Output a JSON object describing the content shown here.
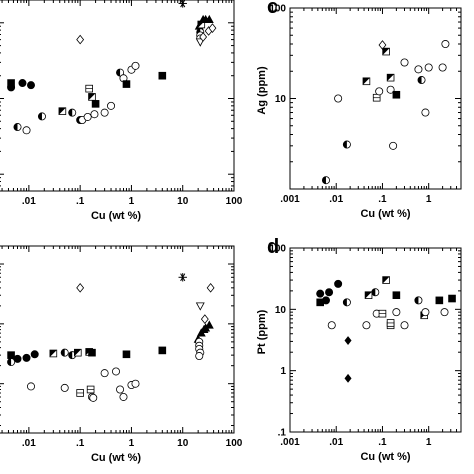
{
  "chart_data": [
    {
      "panel": "a",
      "type": "scatter",
      "letter": "",
      "xlabel": "Cu  (wt %)",
      "ylabel": "",
      "x_scale": "log",
      "y_scale": "log",
      "xlim": [
        0.0025,
        100
      ],
      "ylim": [
        0.6,
        200
      ],
      "x_ticks": [
        {
          "v": 0.01,
          "label": ".01"
        },
        {
          "v": 0.1,
          "label": ".1"
        },
        {
          "v": 1,
          "label": "1"
        },
        {
          "v": 10,
          "label": "10"
        },
        {
          "v": 100,
          "label": "100"
        }
      ],
      "y_ticks": [],
      "points": [
        {
          "x": 0.0045,
          "y": 14,
          "m": "filled-circle"
        },
        {
          "x": 0.0045,
          "y": 16,
          "m": "filled-square"
        },
        {
          "x": 0.0075,
          "y": 16,
          "m": "filled-circle"
        },
        {
          "x": 0.011,
          "y": 15,
          "m": "filled-circle"
        },
        {
          "x": 0.006,
          "y": 4.2,
          "m": "half-circle"
        },
        {
          "x": 0.009,
          "y": 3.8,
          "m": "open-circle"
        },
        {
          "x": 0.018,
          "y": 5.8,
          "m": "half-circle"
        },
        {
          "x": 0.045,
          "y": 6.8,
          "m": "half-square"
        },
        {
          "x": 0.07,
          "y": 6.5,
          "m": "half-circle"
        },
        {
          "x": 0.1,
          "y": 5.2,
          "m": "half-circle"
        },
        {
          "x": 0.11,
          "y": 5.2,
          "m": "open-circle"
        },
        {
          "x": 0.14,
          "y": 5.7,
          "m": "open-circle"
        },
        {
          "x": 0.15,
          "y": 13.5,
          "m": "open-square"
        },
        {
          "x": 0.17,
          "y": 10.5,
          "m": "half-square"
        },
        {
          "x": 0.2,
          "y": 8.5,
          "m": "filled-square"
        },
        {
          "x": 0.19,
          "y": 6.2,
          "m": "open-circle"
        },
        {
          "x": 0.3,
          "y": 6.5,
          "m": "open-circle"
        },
        {
          "x": 0.4,
          "y": 8.0,
          "m": "open-circle"
        },
        {
          "x": 0.6,
          "y": 22,
          "m": "half-circle"
        },
        {
          "x": 0.7,
          "y": 18.5,
          "m": "open-circle"
        },
        {
          "x": 0.8,
          "y": 15.5,
          "m": "filled-square"
        },
        {
          "x": 1.0,
          "y": 24,
          "m": "open-circle"
        },
        {
          "x": 1.2,
          "y": 27,
          "m": "open-circle"
        },
        {
          "x": 0.1,
          "y": 60,
          "m": "open-diamond"
        },
        {
          "x": 4,
          "y": 20,
          "m": "filled-square"
        },
        {
          "x": 10,
          "y": 180,
          "m": "asterisk"
        },
        {
          "x": 21,
          "y": 90,
          "m": "filled-triangle"
        },
        {
          "x": 23,
          "y": 95,
          "m": "half-square"
        },
        {
          "x": 25,
          "y": 110,
          "m": "filled-triangle"
        },
        {
          "x": 28,
          "y": 110,
          "m": "filled-triangle"
        },
        {
          "x": 33,
          "y": 110,
          "m": "filled-triangle"
        },
        {
          "x": 22,
          "y": 75,
          "m": "half-circle"
        },
        {
          "x": 22,
          "y": 68,
          "m": "open-circle"
        },
        {
          "x": 22,
          "y": 62,
          "m": "open-circle"
        },
        {
          "x": 22,
          "y": 56,
          "m": "open-triangle-down"
        },
        {
          "x": 25,
          "y": 65,
          "m": "open-diamond"
        },
        {
          "x": 32,
          "y": 78,
          "m": "open-diamond"
        },
        {
          "x": 38,
          "y": 85,
          "m": "open-diamond"
        }
      ]
    },
    {
      "panel": "c",
      "type": "scatter",
      "letter": "c",
      "xlabel": "Cu  (wt %)",
      "ylabel": "Ag  (ppm)",
      "x_scale": "log",
      "y_scale": "log",
      "xlim": [
        0.001,
        5
      ],
      "ylim": [
        1,
        100
      ],
      "x_ticks": [
        {
          "v": 0.001,
          "label": ".001"
        },
        {
          "v": 0.01,
          "label": ".01"
        },
        {
          "v": 0.1,
          "label": ".1"
        },
        {
          "v": 1,
          "label": "1"
        }
      ],
      "y_ticks": [
        {
          "v": 10,
          "label": "10"
        },
        {
          "v": 100,
          "label": "100"
        }
      ],
      "points": [
        {
          "x": 0.006,
          "y": 1.25,
          "m": "half-circle"
        },
        {
          "x": 0.011,
          "y": 10,
          "m": "open-circle"
        },
        {
          "x": 0.017,
          "y": 3.1,
          "m": "half-circle"
        },
        {
          "x": 0.045,
          "y": 15.5,
          "m": "half-square"
        },
        {
          "x": 0.075,
          "y": 10.2,
          "m": "open-square"
        },
        {
          "x": 0.085,
          "y": 12,
          "m": "open-circle"
        },
        {
          "x": 0.1,
          "y": 39,
          "m": "open-diamond"
        },
        {
          "x": 0.12,
          "y": 33,
          "m": "half-square"
        },
        {
          "x": 0.15,
          "y": 17,
          "m": "half-square"
        },
        {
          "x": 0.15,
          "y": 12.5,
          "m": "open-circle"
        },
        {
          "x": 0.17,
          "y": 3,
          "m": "open-circle"
        },
        {
          "x": 0.2,
          "y": 11,
          "m": "filled-square"
        },
        {
          "x": 0.3,
          "y": 25,
          "m": "open-circle"
        },
        {
          "x": 0.6,
          "y": 21,
          "m": "open-circle"
        },
        {
          "x": 0.7,
          "y": 16,
          "m": "half-circle"
        },
        {
          "x": 0.85,
          "y": 7,
          "m": "open-circle"
        },
        {
          "x": 1.0,
          "y": 22,
          "m": "open-circle"
        },
        {
          "x": 2.0,
          "y": 22,
          "m": "open-circle"
        },
        {
          "x": 2.3,
          "y": 40,
          "m": "open-circle"
        }
      ]
    },
    {
      "panel": "b",
      "type": "scatter",
      "letter": "",
      "xlabel": "Cu  (wt %)",
      "ylabel": "",
      "x_scale": "log",
      "y_scale": "log",
      "xlim": [
        0.0025,
        100
      ],
      "ylim": [
        0.15,
        200
      ],
      "x_ticks": [
        {
          "v": 0.01,
          "label": ".01"
        },
        {
          "v": 0.1,
          "label": ".1"
        },
        {
          "v": 1,
          "label": "1"
        },
        {
          "v": 10,
          "label": "10"
        },
        {
          "v": 100,
          "label": "100"
        }
      ],
      "y_ticks": [],
      "points": [
        {
          "x": 0.0045,
          "y": 2.3,
          "m": "half-circle"
        },
        {
          "x": 0.0045,
          "y": 3.0,
          "m": "filled-square"
        },
        {
          "x": 0.006,
          "y": 2.6,
          "m": "filled-circle"
        },
        {
          "x": 0.009,
          "y": 2.7,
          "m": "filled-circle"
        },
        {
          "x": 0.013,
          "y": 3.1,
          "m": "filled-circle"
        },
        {
          "x": 0.011,
          "y": 0.9,
          "m": "open-circle"
        },
        {
          "x": 0.03,
          "y": 3.2,
          "m": "half-square"
        },
        {
          "x": 0.05,
          "y": 3.3,
          "m": "half-circle"
        },
        {
          "x": 0.07,
          "y": 3.0,
          "m": "half-circle"
        },
        {
          "x": 0.05,
          "y": 0.85,
          "m": "open-circle"
        },
        {
          "x": 0.09,
          "y": 3.3,
          "m": "half-square"
        },
        {
          "x": 0.1,
          "y": 0.7,
          "m": "open-square"
        },
        {
          "x": 0.1,
          "y": 40,
          "m": "open-diamond"
        },
        {
          "x": 0.15,
          "y": 3.4,
          "m": "half-square"
        },
        {
          "x": 0.17,
          "y": 3.3,
          "m": "filled-square"
        },
        {
          "x": 0.16,
          "y": 0.8,
          "m": "open-square"
        },
        {
          "x": 0.17,
          "y": 0.6,
          "m": "open-circle"
        },
        {
          "x": 0.18,
          "y": 0.58,
          "m": "open-circle"
        },
        {
          "x": 0.3,
          "y": 1.5,
          "m": "open-circle"
        },
        {
          "x": 0.5,
          "y": 1.6,
          "m": "open-circle"
        },
        {
          "x": 0.6,
          "y": 0.8,
          "m": "open-circle"
        },
        {
          "x": 0.7,
          "y": 0.6,
          "m": "open-circle"
        },
        {
          "x": 0.8,
          "y": 3.1,
          "m": "filled-square"
        },
        {
          "x": 1.0,
          "y": 0.95,
          "m": "open-circle"
        },
        {
          "x": 1.2,
          "y": 1.0,
          "m": "open-circle"
        },
        {
          "x": 4,
          "y": 3.6,
          "m": "filled-square"
        },
        {
          "x": 10,
          "y": 60,
          "m": "asterisk"
        },
        {
          "x": 22,
          "y": 20,
          "m": "open-triangle-down"
        },
        {
          "x": 20,
          "y": 5.5,
          "m": "filled-triangle"
        },
        {
          "x": 23,
          "y": 7,
          "m": "filled-triangle"
        },
        {
          "x": 26,
          "y": 8,
          "m": "filled-triangle"
        },
        {
          "x": 28,
          "y": 8.5,
          "m": "filled-triangle"
        },
        {
          "x": 33,
          "y": 9.5,
          "m": "filled-triangle"
        },
        {
          "x": 21,
          "y": 5,
          "m": "open-circle"
        },
        {
          "x": 21,
          "y": 4.3,
          "m": "open-circle"
        },
        {
          "x": 21,
          "y": 3.8,
          "m": "open-circle"
        },
        {
          "x": 22,
          "y": 3.3,
          "m": "open-circle"
        },
        {
          "x": 21,
          "y": 2.9,
          "m": "open-circle"
        },
        {
          "x": 27,
          "y": 12,
          "m": "open-diamond"
        },
        {
          "x": 35,
          "y": 40,
          "m": "open-diamond"
        }
      ]
    },
    {
      "panel": "d",
      "type": "scatter",
      "letter": "d",
      "xlabel": "Cu (wt %)",
      "ylabel": "Pt  (ppm)",
      "x_scale": "log",
      "y_scale": "log",
      "xlim": [
        0.001,
        5
      ],
      "ylim": [
        0.1,
        100
      ],
      "x_ticks": [
        {
          "v": 0.001,
          "label": ".001"
        },
        {
          "v": 0.01,
          "label": ".01"
        },
        {
          "v": 0.1,
          "label": ".1"
        },
        {
          "v": 1,
          "label": "1"
        }
      ],
      "y_ticks": [
        {
          "v": 0.1,
          "label": ".1"
        },
        {
          "v": 1,
          "label": "1"
        },
        {
          "v": 10,
          "label": "10"
        },
        {
          "v": 100,
          "label": "100"
        }
      ],
      "points": [
        {
          "x": 0.0045,
          "y": 18,
          "m": "filled-circle"
        },
        {
          "x": 0.0045,
          "y": 13,
          "m": "filled-square"
        },
        {
          "x": 0.006,
          "y": 14,
          "m": "filled-circle"
        },
        {
          "x": 0.007,
          "y": 19,
          "m": "filled-circle"
        },
        {
          "x": 0.008,
          "y": 5.5,
          "m": "open-circle"
        },
        {
          "x": 0.011,
          "y": 26,
          "m": "filled-circle"
        },
        {
          "x": 0.017,
          "y": 13,
          "m": "half-circle"
        },
        {
          "x": 0.018,
          "y": 3.1,
          "m": "filled-diamond"
        },
        {
          "x": 0.018,
          "y": 0.75,
          "m": "filled-diamond"
        },
        {
          "x": 0.045,
          "y": 5.5,
          "m": "open-circle"
        },
        {
          "x": 0.05,
          "y": 17,
          "m": "half-square"
        },
        {
          "x": 0.07,
          "y": 19,
          "m": "half-circle"
        },
        {
          "x": 0.075,
          "y": 8.5,
          "m": "open-circle"
        },
        {
          "x": 0.1,
          "y": 8.5,
          "m": "open-square"
        },
        {
          "x": 0.12,
          "y": 30,
          "m": "half-square"
        },
        {
          "x": 0.15,
          "y": 5.5,
          "m": "open-square"
        },
        {
          "x": 0.15,
          "y": 6,
          "m": "open-square"
        },
        {
          "x": 0.2,
          "y": 17,
          "m": "filled-square"
        },
        {
          "x": 0.2,
          "y": 9,
          "m": "open-circle"
        },
        {
          "x": 0.3,
          "y": 5.5,
          "m": "open-circle"
        },
        {
          "x": 0.6,
          "y": 14,
          "m": "half-circle"
        },
        {
          "x": 0.8,
          "y": 8,
          "m": "half-square"
        },
        {
          "x": 0.85,
          "y": 9,
          "m": "open-circle"
        },
        {
          "x": 1.7,
          "y": 14,
          "m": "filled-square"
        },
        {
          "x": 2.2,
          "y": 9,
          "m": "open-circle"
        },
        {
          "x": 3.2,
          "y": 15,
          "m": "filled-square"
        }
      ]
    }
  ]
}
